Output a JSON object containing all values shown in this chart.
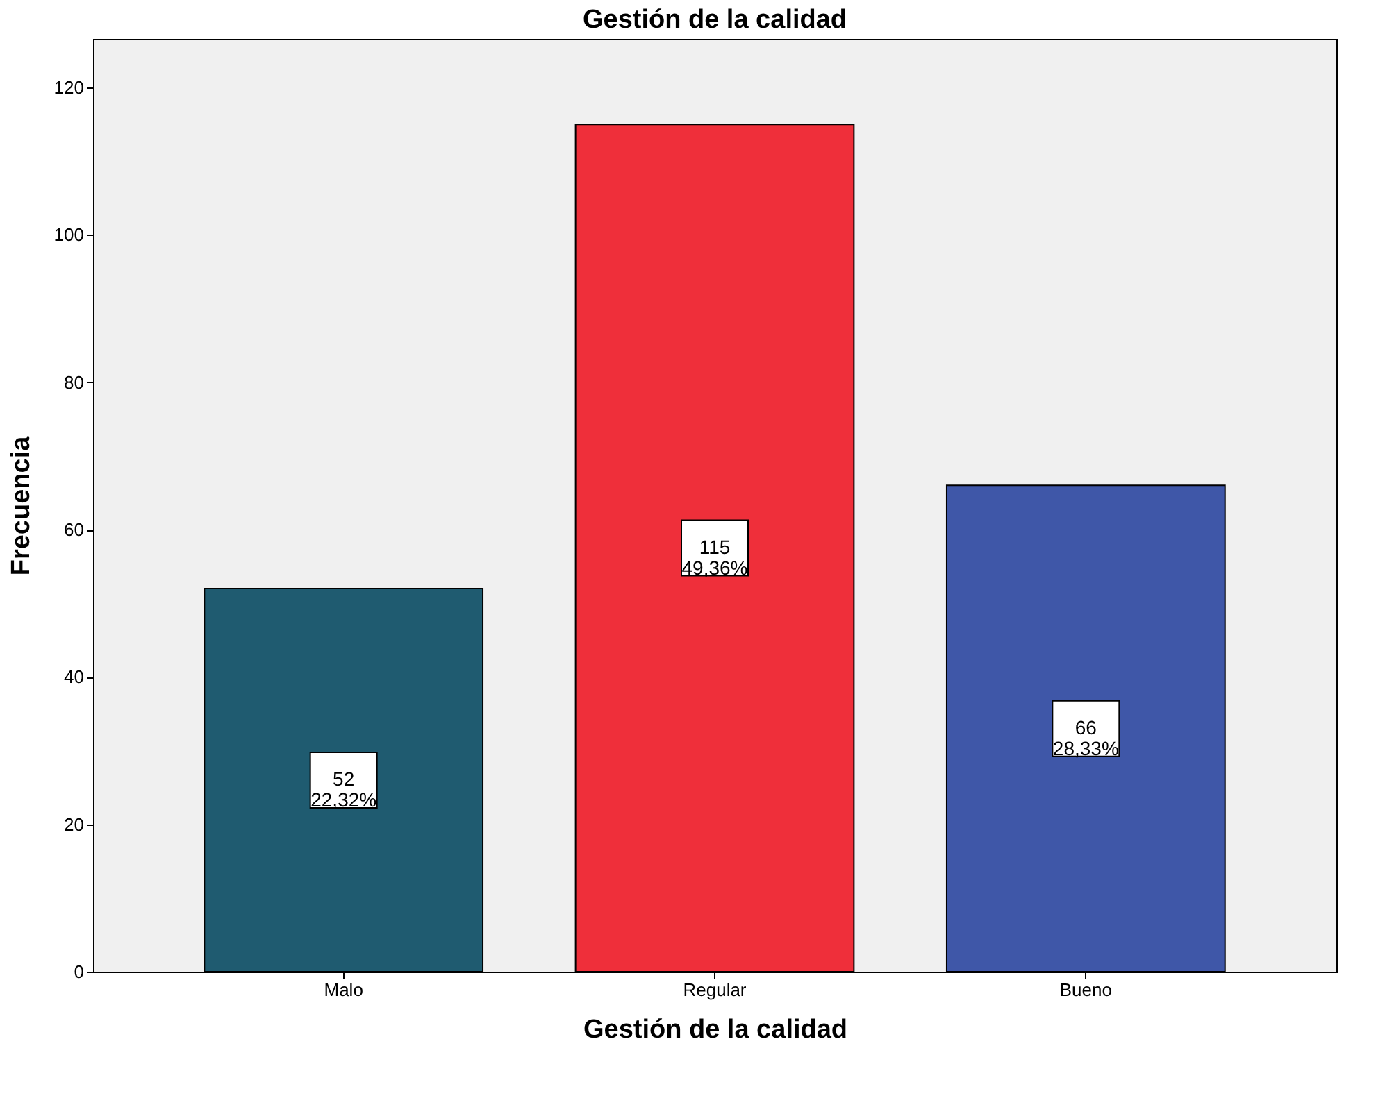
{
  "chart_data": {
    "type": "bar",
    "title": "Gestión de la calidad",
    "xlabel": "Gestión de la calidad",
    "ylabel": "Frecuencia",
    "categories": [
      "Malo",
      "Regular",
      "Bueno"
    ],
    "values": [
      52,
      115,
      66
    ],
    "colors": [
      "#1f5b70",
      "#ef2f3a",
      "#3f57a8"
    ],
    "value_labels": [
      "52\n22,32%",
      "115\n49,36%",
      "66\n28,33%"
    ],
    "ylim": [
      0,
      126.6
    ],
    "yticks": [
      0,
      20,
      40,
      60,
      80,
      100,
      120
    ],
    "grid": false
  }
}
